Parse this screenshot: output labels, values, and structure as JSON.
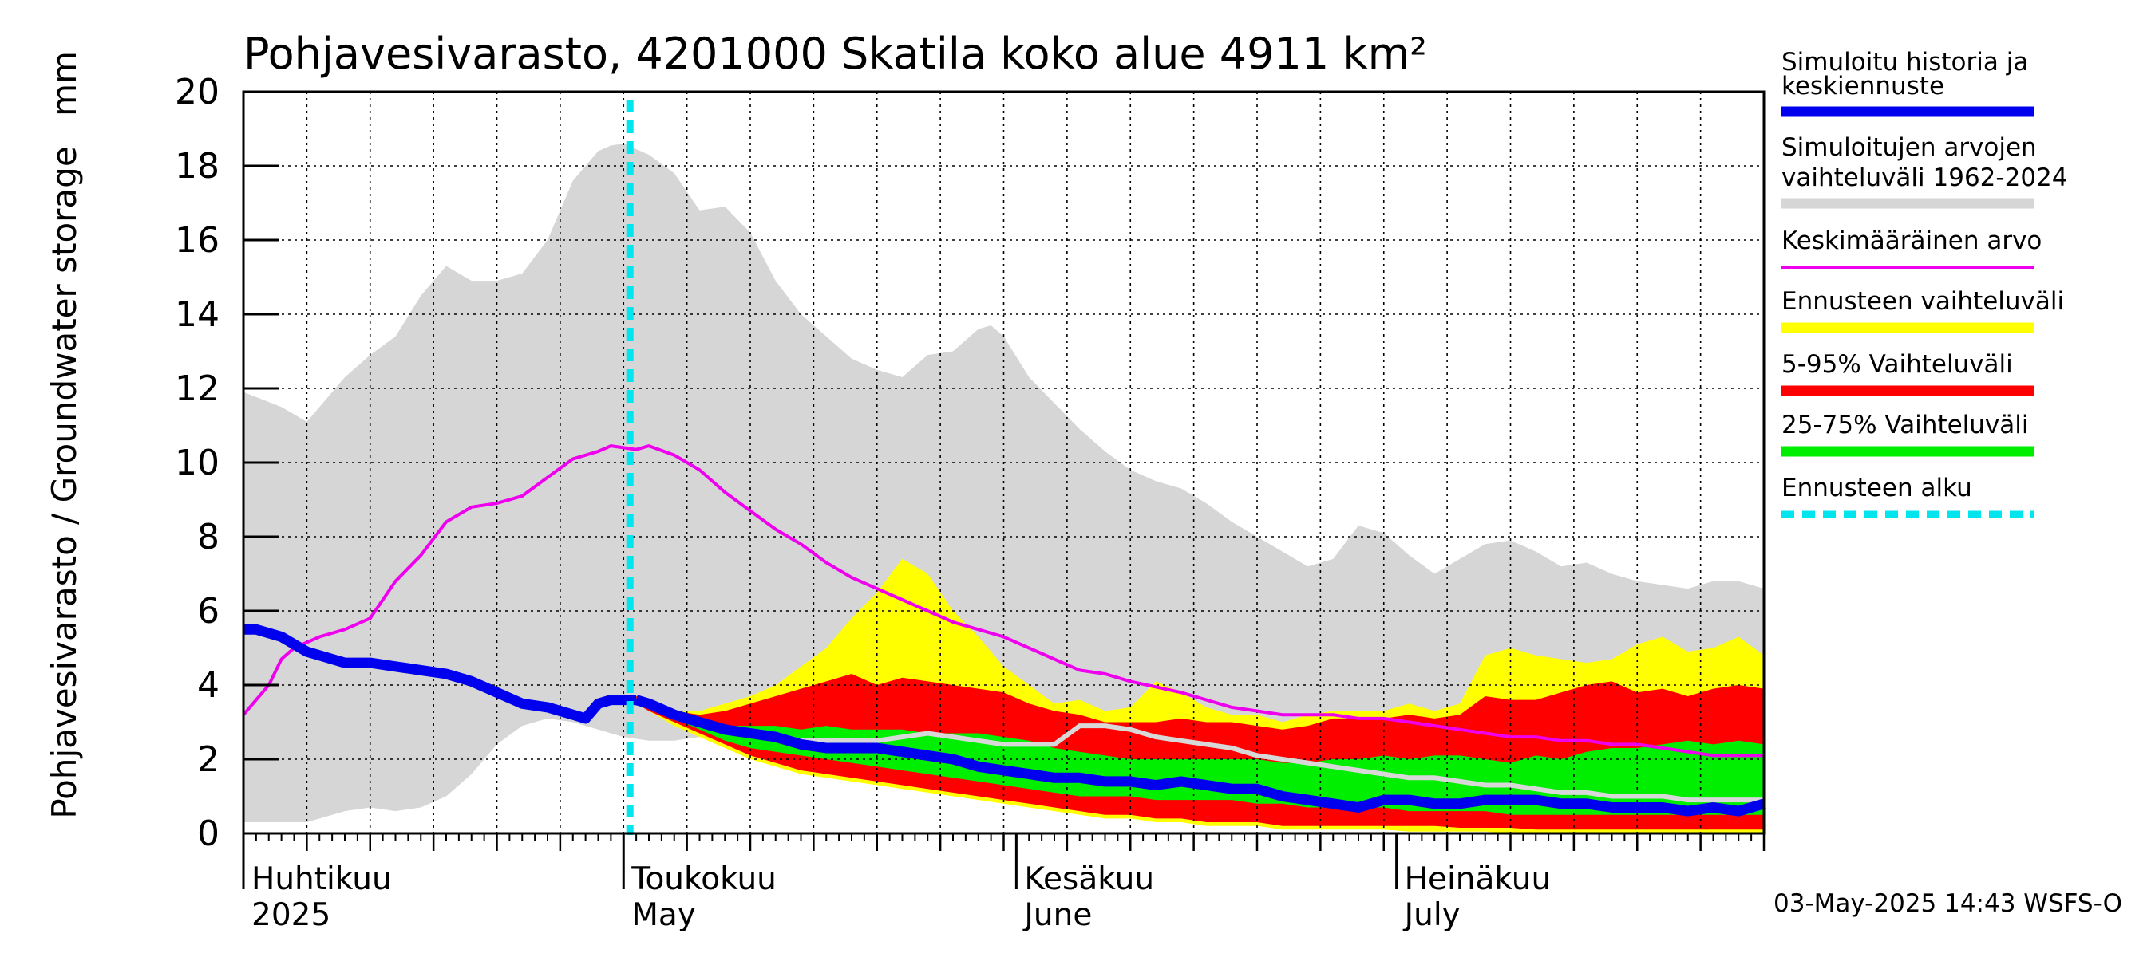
{
  "title": "Pohjavesivarasto, 4201000 Skatila koko alue 4911 km²",
  "unit": "mm",
  "ylabel": "Pohjavesivarasto / Groundwater storage",
  "timestamp": "03-May-2025 14:43 WSFS-O",
  "colors": {
    "history": "#0000ee",
    "range": "#d6d6d6",
    "mean": "#ee00ee",
    "forecast_range": "#ffff00",
    "p5_95": "#ff0000",
    "p25_75": "#00ee00",
    "forecast_start": "#00e5ee",
    "median_gray": "#d8d8d8"
  },
  "legend": [
    {
      "label1": "Simuloitu historia ja",
      "label2": "keskiennuste",
      "color": "#0000ee",
      "style": "thick"
    },
    {
      "label1": "Simuloitujen arvojen",
      "label2": "vaihteluväli 1962-2024",
      "color": "#d6d6d6",
      "style": "thick"
    },
    {
      "label1": "Keskimääräinen arvo",
      "label2": "",
      "color": "#ee00ee",
      "style": "thin"
    },
    {
      "label1": "Ennusteen vaihteluväli",
      "label2": "",
      "color": "#ffff00",
      "style": "thick"
    },
    {
      "label1": "5-95% Vaihteluväli",
      "label2": "",
      "color": "#ff0000",
      "style": "thick"
    },
    {
      "label1": "25-75% Vaihteluväli",
      "label2": "",
      "color": "#00ee00",
      "style": "thick"
    },
    {
      "label1": "Ennusteen alku",
      "label2": "",
      "color": "#00e5ee",
      "style": "dashed"
    }
  ],
  "chart_data": {
    "type": "area",
    "ylim": [
      0,
      20
    ],
    "yticks": [
      0,
      2,
      4,
      6,
      8,
      10,
      12,
      14,
      16,
      18,
      20
    ],
    "xlim_days": [
      0,
      120
    ],
    "months": [
      {
        "label1": "Huhtikuu",
        "label2": "2025",
        "day": 0
      },
      {
        "label1": "Toukokuu",
        "label2": "May",
        "day": 30
      },
      {
        "label1": "Kesäkuu",
        "label2": "June",
        "day": 61
      },
      {
        "label1": "Heinäkuu",
        "label2": "July",
        "day": 91
      }
    ],
    "forecast_start_day": 30.5,
    "historical_range": {
      "x": [
        0,
        3,
        5,
        6,
        8,
        10,
        12,
        14,
        16,
        18,
        20,
        22,
        24,
        26,
        28,
        29,
        30,
        32,
        34,
        36,
        38,
        40,
        42,
        44,
        46,
        48,
        50,
        52,
        54,
        56,
        58,
        59,
        60,
        62,
        64,
        66,
        68,
        70,
        72,
        74,
        76,
        78,
        80,
        82,
        84,
        86,
        88,
        90,
        92,
        94,
        96,
        98,
        100,
        102,
        104,
        106,
        108,
        110,
        112,
        114,
        116,
        118,
        120
      ],
      "upper": [
        11.9,
        11.5,
        11.1,
        11.5,
        12.3,
        12.9,
        13.4,
        14.5,
        15.3,
        14.9,
        14.9,
        15.1,
        16.0,
        17.6,
        18.4,
        18.55,
        18.6,
        18.3,
        17.8,
        16.8,
        16.9,
        16.2,
        14.9,
        14.0,
        13.4,
        12.8,
        12.5,
        12.3,
        12.9,
        13.0,
        13.6,
        13.7,
        13.4,
        12.3,
        11.6,
        10.9,
        10.3,
        9.8,
        9.5,
        9.3,
        8.9,
        8.4,
        8.0,
        7.6,
        7.2,
        7.4,
        8.3,
        8.1,
        7.5,
        7.0,
        7.4,
        7.8,
        7.9,
        7.6,
        7.2,
        7.3,
        7.0,
        6.8,
        6.7,
        6.6,
        6.8,
        6.8,
        6.6
      ],
      "lower": [
        0.3,
        0.3,
        0.3,
        0.4,
        0.6,
        0.7,
        0.6,
        0.7,
        1.0,
        1.6,
        2.4,
        2.9,
        3.1,
        3.0,
        2.8,
        2.7,
        2.6,
        2.5,
        2.5,
        2.6,
        2.8,
        3.2,
        3.4,
        3.4,
        3.2,
        3.0,
        2.8,
        2.6,
        2.4,
        2.3,
        2.2,
        2.1,
        2.0,
        1.9,
        1.8,
        1.7,
        1.5,
        1.4,
        1.4,
        1.3,
        1.3,
        1.2,
        1.1,
        1.0,
        0.9,
        0.8,
        0.8,
        0.7,
        0.6,
        0.6,
        0.5,
        0.5,
        0.5,
        0.4,
        0.4,
        0.4,
        0.4,
        0.3,
        0.3,
        0.3,
        0.3,
        0.3,
        0.3
      ]
    },
    "mean": {
      "x": [
        0,
        1,
        2,
        3,
        4,
        6,
        8,
        10,
        12,
        14,
        16,
        18,
        20,
        22,
        24,
        26,
        28,
        29,
        30,
        31,
        32,
        34,
        36,
        38,
        40,
        42,
        44,
        46,
        48,
        50,
        52,
        54,
        56,
        58,
        60,
        62,
        64,
        66,
        68,
        70,
        72,
        74,
        76,
        78,
        80,
        82,
        84,
        86,
        88,
        90,
        92,
        94,
        96,
        98,
        100,
        102,
        104,
        106,
        108,
        110,
        112,
        114,
        116,
        118,
        120
      ],
      "values": [
        3.2,
        3.6,
        4.0,
        4.7,
        5.0,
        5.3,
        5.5,
        5.8,
        6.8,
        7.5,
        8.4,
        8.8,
        8.9,
        9.1,
        9.6,
        10.1,
        10.3,
        10.45,
        10.4,
        10.35,
        10.45,
        10.2,
        9.8,
        9.2,
        8.7,
        8.2,
        7.8,
        7.3,
        6.9,
        6.6,
        6.3,
        6.0,
        5.7,
        5.5,
        5.3,
        5.0,
        4.7,
        4.4,
        4.3,
        4.1,
        3.95,
        3.8,
        3.6,
        3.4,
        3.3,
        3.2,
        3.2,
        3.2,
        3.1,
        3.1,
        3.0,
        2.9,
        2.8,
        2.7,
        2.6,
        2.6,
        2.5,
        2.5,
        2.4,
        2.4,
        2.3,
        2.2,
        2.1,
        2.1,
        2.1
      ]
    },
    "history": {
      "x": [
        0,
        1,
        2,
        3,
        4,
        5,
        6,
        8,
        10,
        12,
        14,
        16,
        18,
        20,
        22,
        24,
        25,
        26,
        27,
        28,
        29,
        30,
        31
      ],
      "values": [
        5.5,
        5.5,
        5.4,
        5.3,
        5.1,
        4.9,
        4.8,
        4.6,
        4.6,
        4.5,
        4.4,
        4.3,
        4.1,
        3.8,
        3.5,
        3.4,
        3.3,
        3.2,
        3.1,
        3.5,
        3.6,
        3.6,
        3.6
      ]
    },
    "forecast": {
      "x": [
        31,
        32,
        34,
        36,
        38,
        40,
        42,
        44,
        46,
        48,
        50,
        52,
        54,
        56,
        58,
        60,
        62,
        64,
        66,
        68,
        70,
        72,
        74,
        76,
        78,
        80,
        82,
        84,
        86,
        88,
        90,
        92,
        94,
        96,
        98,
        100,
        102,
        104,
        106,
        108,
        110,
        112,
        114,
        116,
        118,
        120
      ],
      "yellow_upper": [
        3.7,
        3.6,
        3.3,
        3.3,
        3.5,
        3.7,
        4.0,
        4.5,
        5.0,
        5.8,
        6.5,
        7.4,
        7.0,
        6.0,
        5.3,
        4.5,
        4.0,
        3.5,
        3.6,
        3.3,
        3.4,
        4.1,
        3.8,
        3.4,
        3.2,
        3.2,
        3.0,
        3.2,
        3.3,
        3.3,
        3.3,
        3.5,
        3.3,
        3.5,
        4.8,
        5.0,
        4.8,
        4.7,
        4.6,
        4.7,
        5.1,
        5.3,
        4.9,
        5.0,
        5.3,
        4.8
      ],
      "red_upper": [
        3.7,
        3.6,
        3.3,
        3.2,
        3.3,
        3.5,
        3.7,
        3.9,
        4.1,
        4.3,
        4.0,
        4.2,
        4.1,
        4.0,
        3.9,
        3.8,
        3.5,
        3.3,
        3.2,
        3.0,
        3.0,
        3.0,
        3.1,
        3.0,
        3.0,
        2.9,
        2.8,
        2.9,
        3.1,
        3.1,
        3.1,
        3.2,
        3.1,
        3.2,
        3.7,
        3.6,
        3.6,
        3.8,
        4.0,
        4.1,
        3.8,
        3.9,
        3.7,
        3.9,
        4.0,
        3.9
      ],
      "green_upper": [
        3.6,
        3.5,
        3.2,
        3.0,
        2.9,
        2.9,
        2.9,
        2.8,
        2.9,
        2.8,
        2.8,
        2.8,
        2.7,
        2.7,
        2.7,
        2.6,
        2.5,
        2.3,
        2.2,
        2.1,
        2.0,
        2.0,
        2.0,
        2.0,
        2.0,
        2.0,
        1.9,
        1.9,
        2.0,
        2.0,
        2.1,
        2.0,
        2.1,
        2.1,
        2.0,
        1.9,
        2.1,
        2.0,
        2.2,
        2.3,
        2.3,
        2.4,
        2.5,
        2.4,
        2.5,
        2.4
      ],
      "green_lower": [
        3.5,
        3.4,
        3.1,
        2.8,
        2.5,
        2.3,
        2.2,
        2.1,
        2.0,
        1.9,
        1.8,
        1.7,
        1.6,
        1.5,
        1.4,
        1.3,
        1.2,
        1.1,
        1.0,
        1.0,
        1.0,
        0.9,
        0.9,
        0.9,
        0.9,
        0.8,
        0.8,
        0.7,
        0.7,
        0.7,
        0.7,
        0.6,
        0.6,
        0.6,
        0.6,
        0.5,
        0.5,
        0.5,
        0.5,
        0.5,
        0.5,
        0.5,
        0.5,
        0.5,
        0.5,
        0.5
      ],
      "red_lower": [
        3.5,
        3.3,
        3.0,
        2.7,
        2.4,
        2.1,
        1.9,
        1.7,
        1.6,
        1.5,
        1.4,
        1.3,
        1.2,
        1.1,
        1.0,
        0.9,
        0.8,
        0.7,
        0.6,
        0.5,
        0.5,
        0.4,
        0.4,
        0.3,
        0.3,
        0.3,
        0.2,
        0.2,
        0.2,
        0.2,
        0.2,
        0.2,
        0.2,
        0.15,
        0.15,
        0.15,
        0.1,
        0.1,
        0.1,
        0.1,
        0.1,
        0.1,
        0.1,
        0.1,
        0.1,
        0.1
      ],
      "yellow_lower": [
        3.5,
        3.3,
        2.9,
        2.6,
        2.3,
        2.0,
        1.8,
        1.6,
        1.5,
        1.4,
        1.3,
        1.2,
        1.1,
        1.0,
        0.9,
        0.8,
        0.7,
        0.6,
        0.5,
        0.4,
        0.4,
        0.3,
        0.3,
        0.2,
        0.2,
        0.2,
        0.1,
        0.1,
        0.1,
        0.1,
        0.1,
        0.05,
        0.05,
        0.05,
        0.05,
        0.0,
        0.0,
        0.0,
        0.0,
        0.0,
        0.0,
        0.0,
        0.0,
        0.0,
        0.0,
        0.0
      ],
      "median_gray": [
        3.6,
        3.5,
        3.2,
        3.0,
        2.8,
        2.7,
        2.6,
        2.5,
        2.5,
        2.5,
        2.5,
        2.6,
        2.7,
        2.6,
        2.5,
        2.4,
        2.4,
        2.4,
        2.9,
        2.9,
        2.8,
        2.6,
        2.5,
        2.4,
        2.3,
        2.1,
        2.0,
        1.9,
        1.8,
        1.7,
        1.6,
        1.5,
        1.5,
        1.4,
        1.3,
        1.3,
        1.2,
        1.1,
        1.1,
        1.0,
        1.0,
        1.0,
        0.9,
        0.9,
        0.9,
        0.9
      ],
      "blue_median": [
        3.6,
        3.5,
        3.2,
        3.0,
        2.8,
        2.7,
        2.6,
        2.4,
        2.3,
        2.3,
        2.3,
        2.2,
        2.1,
        2.0,
        1.8,
        1.7,
        1.6,
        1.5,
        1.5,
        1.4,
        1.4,
        1.3,
        1.4,
        1.3,
        1.2,
        1.2,
        1.0,
        0.9,
        0.8,
        0.7,
        0.9,
        0.9,
        0.8,
        0.8,
        0.9,
        0.9,
        0.9,
        0.8,
        0.8,
        0.7,
        0.7,
        0.7,
        0.6,
        0.7,
        0.6,
        0.8
      ]
    }
  }
}
